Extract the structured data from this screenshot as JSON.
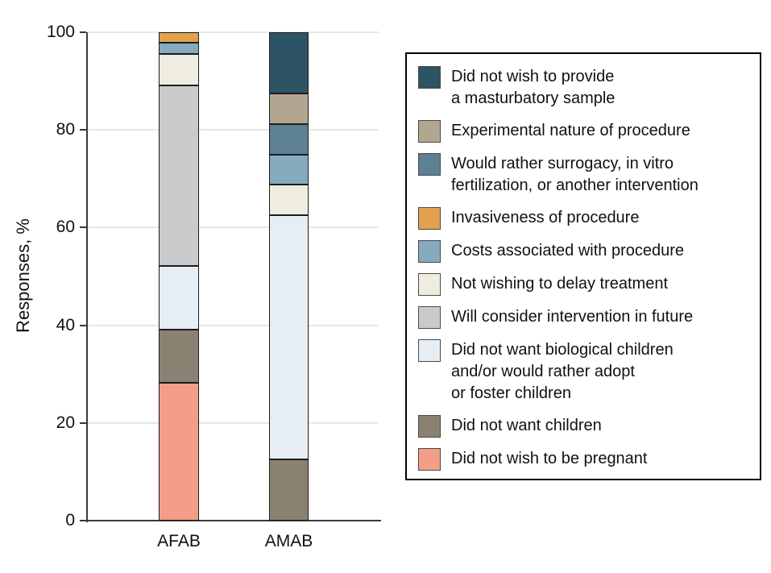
{
  "chart_data": {
    "type": "bar",
    "stacked": true,
    "title": "",
    "ylabel": "Responses, %",
    "xlabel": "",
    "ylim": [
      0,
      100
    ],
    "yticks": [
      0,
      20,
      40,
      60,
      80,
      100
    ],
    "grid": "horizontal",
    "legend_position": "right",
    "categories": [
      "AFAB",
      "AMAB"
    ],
    "series": [
      {
        "name": "Did not wish to provide a masturbatory sample",
        "lines": [
          "Did not wish to provide",
          "a masturbatory sample"
        ],
        "color": "#2d5464",
        "values": [
          0,
          12.5
        ]
      },
      {
        "name": "Experimental nature of procedure",
        "lines": [
          "Experimental nature of procedure"
        ],
        "color": "#b1a790",
        "values": [
          0,
          6.25
        ]
      },
      {
        "name": "Would rather surrogacy, in vitro fertilization, or another intervention",
        "lines": [
          "Would rather surrogacy, in vitro",
          "fertilization, or another intervention"
        ],
        "color": "#5d8193",
        "values": [
          0,
          6.25
        ]
      },
      {
        "name": "Invasiveness of procedure",
        "lines": [
          "Invasiveness of procedure"
        ],
        "color": "#e1a14f",
        "values": [
          2.2,
          0
        ]
      },
      {
        "name": "Costs associated with procedure",
        "lines": [
          "Costs associated with procedure"
        ],
        "color": "#86aabe",
        "values": [
          2.2,
          6.25
        ]
      },
      {
        "name": "Not wishing to delay treatment",
        "lines": [
          "Not wishing to delay treatment"
        ],
        "color": "#efede0",
        "values": [
          6.5,
          6.25
        ]
      },
      {
        "name": "Will consider intervention in future",
        "lines": [
          "Will consider intervention in future"
        ],
        "color": "#c8cacc",
        "values": [
          37.0,
          0
        ]
      },
      {
        "name": "Did not want biological children and/or would rather adopt or foster children",
        "lines": [
          "Did not want biological children",
          "and/or would rather adopt",
          "or foster children"
        ],
        "color": "#e7eef3",
        "values": [
          13.0,
          50.0
        ]
      },
      {
        "name": "Did not want children",
        "lines": [
          "Did not want children"
        ],
        "color": "#8a8173",
        "values": [
          10.9,
          12.5
        ]
      },
      {
        "name": "Did not wish to be pregnant",
        "lines": [
          "Did not wish to be pregnant"
        ],
        "color": "#f29e89",
        "values": [
          28.2,
          0
        ]
      }
    ]
  }
}
